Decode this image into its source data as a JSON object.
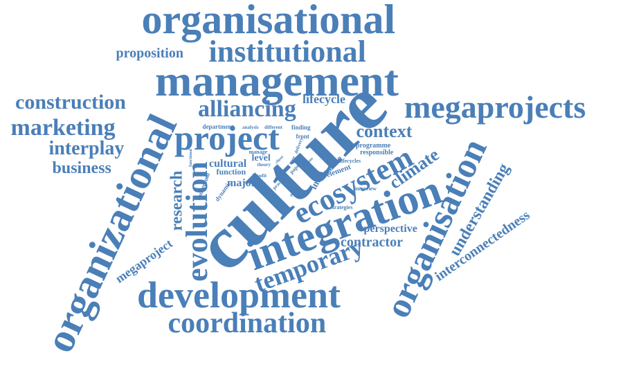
{
  "colors": {
    "text": "#4a7fb8",
    "background": "#ffffff"
  },
  "words": [
    {
      "key": "organisational",
      "text": "organisational"
    },
    {
      "key": "institutional",
      "text": "institutional"
    },
    {
      "key": "proposition",
      "text": "proposition"
    },
    {
      "key": "management",
      "text": "management"
    },
    {
      "key": "construction",
      "text": "construction"
    },
    {
      "key": "marketing",
      "text": "marketing"
    },
    {
      "key": "interplay",
      "text": "interplay"
    },
    {
      "key": "business",
      "text": "business"
    },
    {
      "key": "alliancing",
      "text": "alliancing"
    },
    {
      "key": "lifecycle",
      "text": "lifecycle"
    },
    {
      "key": "megaprojects",
      "text": "megaprojects"
    },
    {
      "key": "project",
      "text": "project"
    },
    {
      "key": "department",
      "text": "department"
    },
    {
      "key": "analysis",
      "text": "analysis"
    },
    {
      "key": "different",
      "text": "different"
    },
    {
      "key": "finding",
      "text": "finding"
    },
    {
      "key": "context",
      "text": "context"
    },
    {
      "key": "programme",
      "text": "programme"
    },
    {
      "key": "responsible",
      "text": "responsible"
    },
    {
      "key": "lifecycles",
      "text": "lifecycles"
    },
    {
      "key": "interview",
      "text": "interview"
    },
    {
      "key": "strategies",
      "text": "strategies"
    },
    {
      "key": "culture",
      "text": "culture"
    },
    {
      "key": "ecosystem",
      "text": "ecosystem"
    },
    {
      "key": "climate",
      "text": "climate"
    },
    {
      "key": "organizational",
      "text": "organizational"
    },
    {
      "key": "research",
      "text": "research"
    },
    {
      "key": "evolution",
      "text": "evolution"
    },
    {
      "key": "cultural",
      "text": "cultural"
    },
    {
      "key": "level",
      "text": "level"
    },
    {
      "key": "function",
      "text": "function"
    },
    {
      "key": "major",
      "text": "major"
    },
    {
      "key": "benefit",
      "text": "benefit"
    },
    {
      "key": "manage",
      "text": "manage"
    },
    {
      "key": "theory",
      "text": "theory"
    },
    {
      "key": "front",
      "text": "front"
    },
    {
      "key": "extent",
      "text": "extent"
    },
    {
      "key": "imos",
      "text": "imos"
    },
    {
      "key": "value",
      "text": "value"
    },
    {
      "key": "element",
      "text": "element"
    },
    {
      "key": "conceptual",
      "text": "conceptual"
    },
    {
      "key": "dynamic",
      "text": "dynamic"
    },
    {
      "key": "functional",
      "text": "functional"
    },
    {
      "key": "practice",
      "text": "practice"
    },
    {
      "key": "integration",
      "text": "integration"
    },
    {
      "key": "perspective",
      "text": "perspective"
    },
    {
      "key": "contractor",
      "text": "contractor"
    },
    {
      "key": "organisation",
      "text": "organisation"
    },
    {
      "key": "understanding",
      "text": "understanding"
    },
    {
      "key": "interconnectedness",
      "text": "interconnectedness"
    },
    {
      "key": "megaproject",
      "text": "megaproject"
    },
    {
      "key": "temporary",
      "text": "temporary"
    },
    {
      "key": "development",
      "text": "development"
    },
    {
      "key": "coordination",
      "text": "coordination"
    },
    {
      "key": "delivery",
      "text": "delivery"
    },
    {
      "key": "paper",
      "text": "paper"
    },
    {
      "key": "client",
      "text": "client"
    },
    {
      "key": "stage",
      "text": "stage"
    },
    {
      "key": "team",
      "text": "team"
    }
  ]
}
